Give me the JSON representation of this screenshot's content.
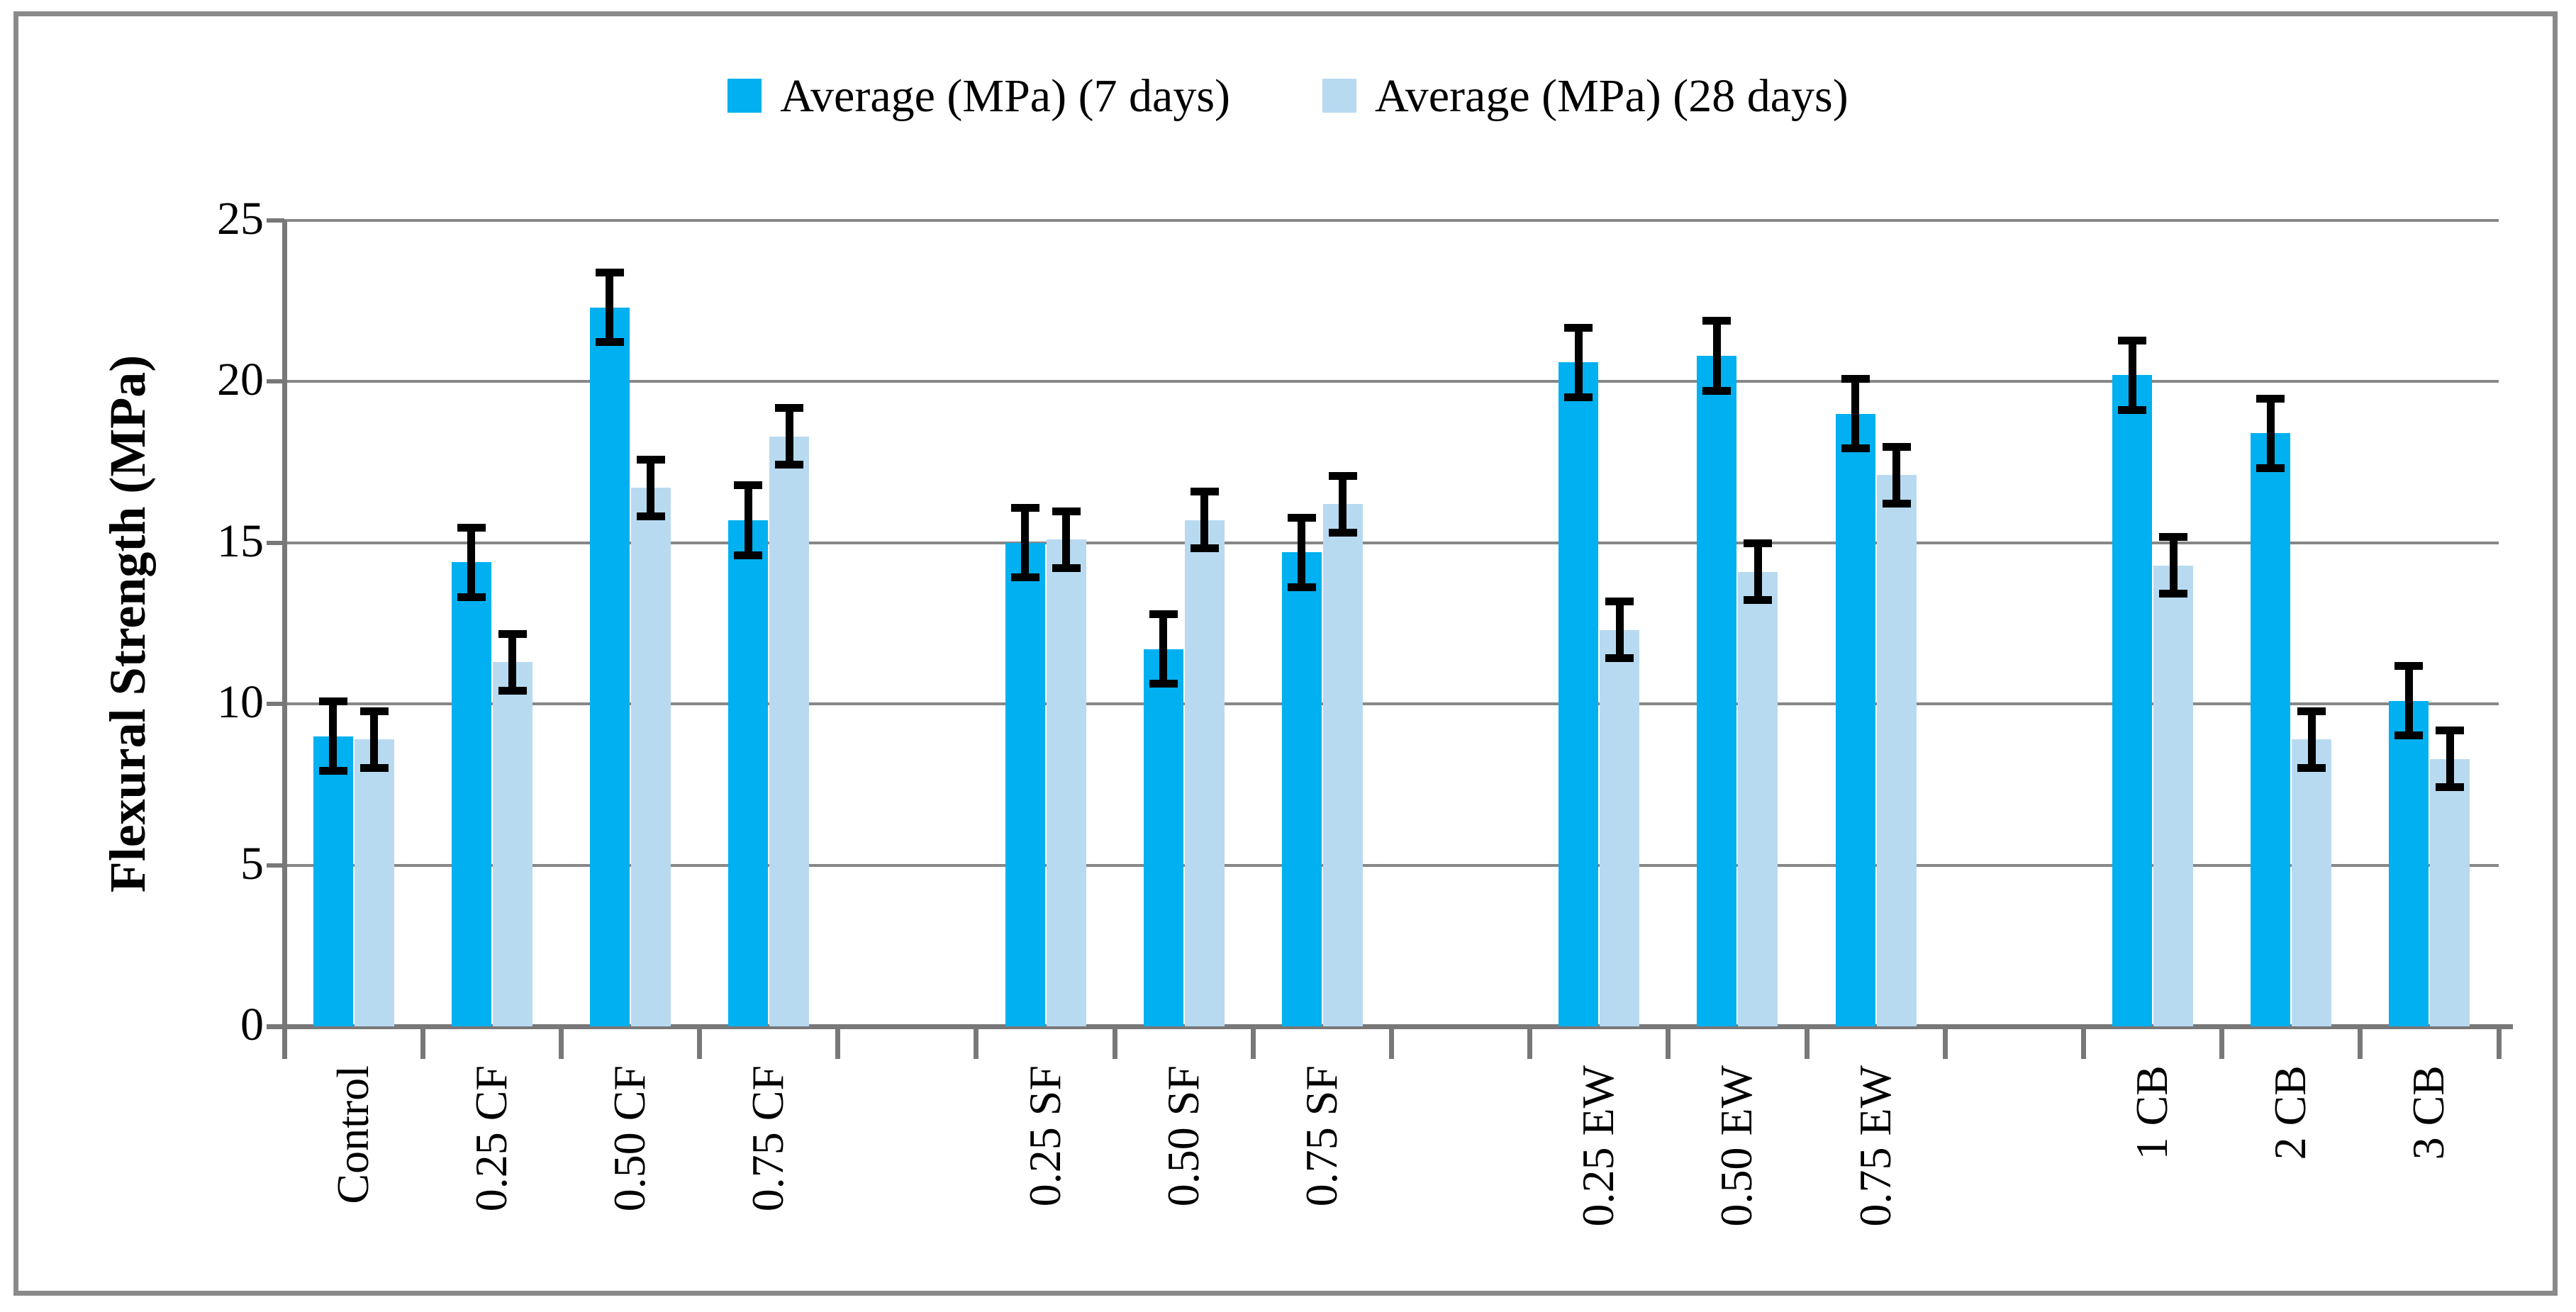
{
  "chart_data": {
    "type": "bar",
    "title": "",
    "ylabel": "Flexural Strength (MPa)",
    "xlabel": "",
    "ylim": [
      0,
      25
    ],
    "yticks": [
      0,
      5,
      10,
      15,
      20,
      25
    ],
    "grid": true,
    "legend_position": "top-center",
    "categories": [
      "Control",
      "0.25 CF",
      "0.50 CF",
      "0.75 CF",
      "",
      "0.25 SF",
      "0.50 SF",
      "0.75 SF",
      "",
      "0.25 EW",
      "0.50 EW",
      "0.75 EW",
      "",
      "1 CB",
      "2 CB",
      "3 CB"
    ],
    "series": [
      {
        "name": "Average (MPa) (7 days)",
        "color": "#00B0F0",
        "values": [
          9.0,
          14.4,
          22.3,
          15.7,
          null,
          15.0,
          11.7,
          14.7,
          null,
          20.6,
          20.8,
          19.0,
          null,
          20.2,
          18.4,
          10.1
        ],
        "errors": [
          1.2,
          1.2,
          1.2,
          1.2,
          null,
          1.2,
          1.2,
          1.2,
          null,
          1.2,
          1.2,
          1.2,
          null,
          1.2,
          1.2,
          1.2
        ]
      },
      {
        "name": "Average (MPa) (28 days)",
        "color": "#B8DAF1",
        "values": [
          8.9,
          11.3,
          16.7,
          18.3,
          null,
          15.1,
          15.7,
          16.2,
          null,
          12.3,
          14.1,
          17.1,
          null,
          14.3,
          8.9,
          8.3
        ],
        "errors": [
          1.0,
          1.0,
          1.0,
          1.0,
          null,
          1.0,
          1.0,
          1.0,
          null,
          1.0,
          1.0,
          1.0,
          null,
          1.0,
          1.0,
          1.0
        ]
      }
    ],
    "error_bar_color": "#000000",
    "colors": {
      "gridline": "#878787",
      "axis": "#787878",
      "figure_border": "#8A8A8A",
      "background": "#FFFFFF",
      "text": "#000000"
    }
  }
}
